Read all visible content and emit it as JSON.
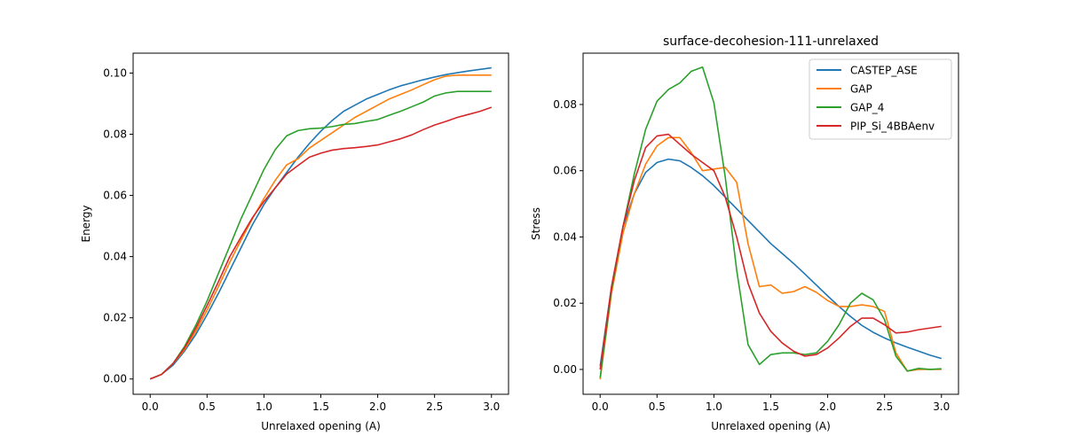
{
  "colors": {
    "CASTEP_ASE": "#1f77b4",
    "GAP": "#ff7f0e",
    "GAP_4": "#2ca02c",
    "PIP_Si_4BBAenv": "#d62728"
  },
  "chart_data": [
    {
      "type": "line",
      "title": "",
      "xlabel": "Unrelaxed opening (A)",
      "ylabel": "Energy",
      "xlim": [
        -0.15,
        3.15
      ],
      "ylim": [
        -0.005,
        0.1065
      ],
      "xticks": [
        0.0,
        0.5,
        1.0,
        1.5,
        2.0,
        2.5,
        3.0
      ],
      "xtick_labels": [
        "0.0",
        "0.5",
        "1.0",
        "1.5",
        "2.0",
        "2.5",
        "3.0"
      ],
      "yticks": [
        0.0,
        0.02,
        0.04,
        0.06,
        0.08,
        0.1
      ],
      "ytick_labels": [
        "0.00",
        "0.02",
        "0.04",
        "0.06",
        "0.08",
        "0.10"
      ],
      "grid": false,
      "x": [
        0.0,
        0.1,
        0.2,
        0.3,
        0.4,
        0.5,
        0.6,
        0.7,
        0.8,
        0.9,
        1.0,
        1.1,
        1.2,
        1.3,
        1.4,
        1.5,
        1.6,
        1.7,
        1.8,
        1.9,
        2.0,
        2.1,
        2.2,
        2.3,
        2.4,
        2.5,
        2.6,
        2.7,
        2.8,
        2.9,
        3.0
      ],
      "series": [
        {
          "key": "CASTEP_ASE",
          "values": [
            0.0,
            0.0015,
            0.0045,
            0.009,
            0.0145,
            0.021,
            0.028,
            0.0355,
            0.043,
            0.0505,
            0.057,
            0.0625,
            0.0675,
            0.0725,
            0.077,
            0.081,
            0.0845,
            0.0875,
            0.0895,
            0.0915,
            0.093,
            0.0945,
            0.0958,
            0.0968,
            0.0978,
            0.0987,
            0.0995,
            0.1001,
            0.1007,
            0.1012,
            0.1017
          ]
        },
        {
          "key": "GAP",
          "values": [
            0.0,
            0.0015,
            0.005,
            0.0095,
            0.0155,
            0.0225,
            0.0302,
            0.0382,
            0.0455,
            0.0525,
            0.059,
            0.065,
            0.07,
            0.072,
            0.0755,
            0.078,
            0.0805,
            0.083,
            0.0855,
            0.0875,
            0.0895,
            0.0915,
            0.093,
            0.0945,
            0.0962,
            0.0978,
            0.099,
            0.0993,
            0.0993,
            0.0993,
            0.0993
          ]
        },
        {
          "key": "GAP_4",
          "values": [
            0.0,
            0.0015,
            0.005,
            0.0105,
            0.0175,
            0.0255,
            0.0345,
            0.0435,
            0.0525,
            0.0605,
            0.0685,
            0.075,
            0.0795,
            0.0812,
            0.0818,
            0.082,
            0.0825,
            0.0832,
            0.0835,
            0.0842,
            0.0848,
            0.0862,
            0.0875,
            0.089,
            0.0905,
            0.0925,
            0.0935,
            0.094,
            0.094,
            0.094,
            0.094
          ]
        },
        {
          "key": "PIP_Si_4BBAenv",
          "values": [
            0.0,
            0.0015,
            0.005,
            0.01,
            0.0165,
            0.024,
            0.0318,
            0.04,
            0.0465,
            0.0528,
            0.058,
            0.0625,
            0.067,
            0.0698,
            0.0725,
            0.0738,
            0.0748,
            0.0753,
            0.0756,
            0.076,
            0.0765,
            0.0775,
            0.0785,
            0.0798,
            0.0815,
            0.083,
            0.0842,
            0.0855,
            0.0865,
            0.0875,
            0.0888
          ]
        }
      ]
    },
    {
      "type": "line",
      "title": "surface-decohesion-111-unrelaxed",
      "xlabel": "Unrelaxed opening (A)",
      "ylabel": "Stress",
      "xlim": [
        -0.15,
        3.15
      ],
      "ylim": [
        -0.0075,
        0.0955
      ],
      "xticks": [
        0.0,
        0.5,
        1.0,
        1.5,
        2.0,
        2.5,
        3.0
      ],
      "xtick_labels": [
        "0.0",
        "0.5",
        "1.0",
        "1.5",
        "2.0",
        "2.5",
        "3.0"
      ],
      "yticks": [
        0.0,
        0.02,
        0.04,
        0.06,
        0.08
      ],
      "ytick_labels": [
        "0.00",
        "0.02",
        "0.04",
        "0.06",
        "0.08"
      ],
      "grid": false,
      "legend": {
        "placement": "upper-right",
        "entries": [
          "CASTEP_ASE",
          "GAP",
          "GAP_4",
          "PIP_Si_4BBAenv"
        ]
      },
      "x": [
        0.0,
        0.1,
        0.2,
        0.3,
        0.4,
        0.5,
        0.6,
        0.7,
        0.8,
        0.9,
        1.0,
        1.1,
        1.2,
        1.3,
        1.4,
        1.5,
        1.6,
        1.7,
        1.8,
        1.9,
        2.0,
        2.1,
        2.2,
        2.3,
        2.4,
        2.5,
        2.6,
        2.7,
        2.8,
        2.9,
        3.0
      ],
      "series": [
        {
          "key": "CASTEP_ASE",
          "values": [
            0.001,
            0.025,
            0.043,
            0.053,
            0.0595,
            0.0625,
            0.0635,
            0.063,
            0.061,
            0.0585,
            0.0555,
            0.052,
            0.0485,
            0.045,
            0.0415,
            0.038,
            0.035,
            0.032,
            0.0288,
            0.0255,
            0.0222,
            0.019,
            0.016,
            0.0133,
            0.0112,
            0.0095,
            0.008,
            0.0067,
            0.0055,
            0.0043,
            0.0033
          ]
        },
        {
          "key": "GAP",
          "values": [
            -0.003,
            0.023,
            0.041,
            0.053,
            0.062,
            0.0675,
            0.07,
            0.07,
            0.0655,
            0.06,
            0.0605,
            0.061,
            0.0565,
            0.038,
            0.025,
            0.0255,
            0.023,
            0.0235,
            0.025,
            0.0233,
            0.0208,
            0.019,
            0.019,
            0.0195,
            0.019,
            0.0175,
            0.005,
            -0.0005,
            0.0,
            0.0,
            0.0
          ]
        },
        {
          "key": "GAP_4",
          "values": [
            -0.0025,
            0.024,
            0.043,
            0.059,
            0.0725,
            0.081,
            0.0845,
            0.0865,
            0.09,
            0.0913,
            0.0805,
            0.058,
            0.03,
            0.0075,
            0.0015,
            0.0045,
            0.005,
            0.005,
            0.0045,
            0.005,
            0.0085,
            0.0135,
            0.02,
            0.023,
            0.021,
            0.015,
            0.004,
            -0.0005,
            0.0003,
            0.0,
            0.0002
          ]
        },
        {
          "key": "PIP_Si_4BBAenv",
          "values": [
            0.0,
            0.025,
            0.043,
            0.057,
            0.067,
            0.0705,
            0.071,
            0.068,
            0.065,
            0.0625,
            0.06,
            0.052,
            0.04,
            0.026,
            0.017,
            0.0115,
            0.008,
            0.0055,
            0.004,
            0.0045,
            0.0065,
            0.0095,
            0.013,
            0.0155,
            0.0155,
            0.0135,
            0.011,
            0.0113,
            0.012,
            0.0125,
            0.013
          ]
        }
      ]
    }
  ]
}
